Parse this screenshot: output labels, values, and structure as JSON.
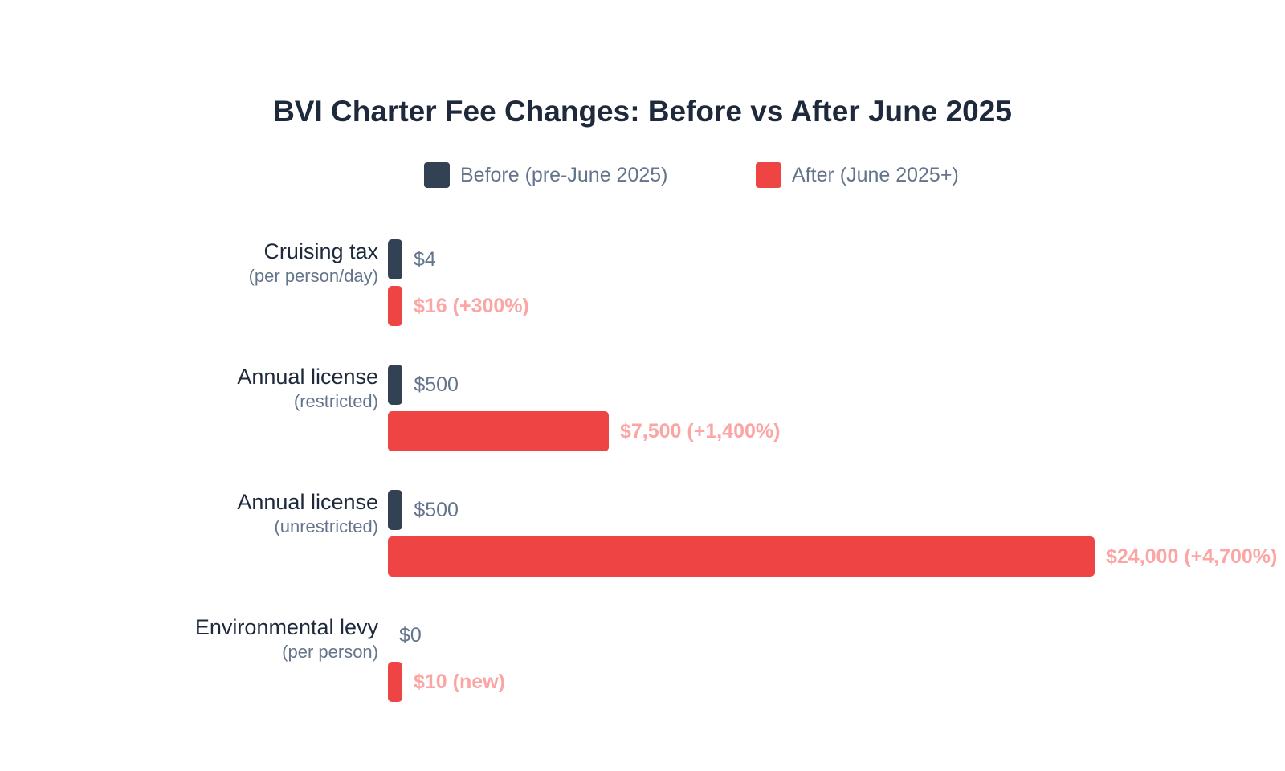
{
  "chart_data": {
    "type": "bar",
    "orientation": "horizontal",
    "title": "BVI Charter Fee Changes: Before vs After June 2025",
    "legend_position": "top",
    "grid": false,
    "xlim": [
      0,
      24000
    ],
    "categories": [
      {
        "name": "Cruising tax",
        "sub": "(per person/day)"
      },
      {
        "name": "Annual license",
        "sub": "(restricted)"
      },
      {
        "name": "Annual license",
        "sub": "(unrestricted)"
      },
      {
        "name": "Environmental levy",
        "sub": "(per person)"
      }
    ],
    "series": [
      {
        "name": "Before (pre-June 2025)",
        "color": "#334155",
        "values": [
          4,
          500,
          500,
          0
        ],
        "labels": [
          "$4",
          "$500",
          "$500",
          "$0"
        ]
      },
      {
        "name": "After (June 2025+)",
        "color": "#ef4444",
        "values": [
          16,
          7500,
          24000,
          10
        ],
        "labels": [
          "$16 (+300%)",
          "$7,500 (+1,400%)",
          "$24,000 (+4,700%)",
          "$10 (new)"
        ]
      }
    ]
  }
}
